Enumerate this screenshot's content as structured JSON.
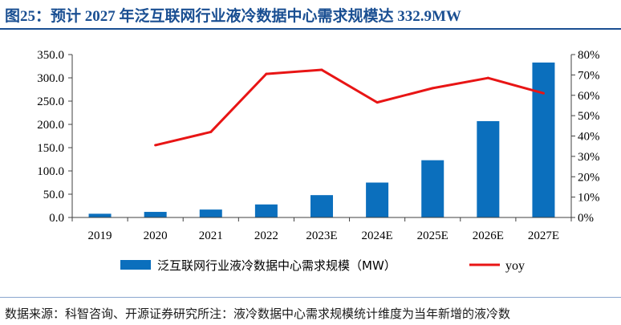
{
  "page": {
    "title": "图25：预计 2027 年泛互联网行业液冷数据中心需求规模达 332.9MW",
    "source": "数据来源：科智咨询、开源证券研究所注：液冷数据中心需求规模统计维度为当年新增的液冷数"
  },
  "colors": {
    "bar": "#0b6fbd",
    "line": "#e81515",
    "title": "#1a4f92"
  },
  "chart_data": {
    "type": "bar",
    "categories": [
      "2019",
      "2020",
      "2021",
      "2022",
      "2023E",
      "2024E",
      "2025E",
      "2026E",
      "2027E"
    ],
    "series": [
      {
        "name": "泛互联网行业液冷数据中心需求规模（MW）",
        "type": "bar",
        "axis": "left",
        "values": [
          8,
          12,
          17,
          28,
          48,
          75,
          123,
          207,
          332.9
        ]
      },
      {
        "name": "yoy",
        "type": "line",
        "axis": "right",
        "values": [
          null,
          0.355,
          0.42,
          0.705,
          0.725,
          0.565,
          0.635,
          0.685,
          0.61
        ]
      }
    ],
    "ylim": [
      0,
      350
    ],
    "yticks": [
      "0.0",
      "50.0",
      "100.0",
      "150.0",
      "200.0",
      "250.0",
      "300.0",
      "350.0"
    ],
    "y2lim": [
      0,
      0.8
    ],
    "y2ticks": [
      "0%",
      "10%",
      "20%",
      "30%",
      "40%",
      "50%",
      "60%",
      "70%",
      "80%"
    ],
    "grid": false,
    "legend": "bottom"
  }
}
